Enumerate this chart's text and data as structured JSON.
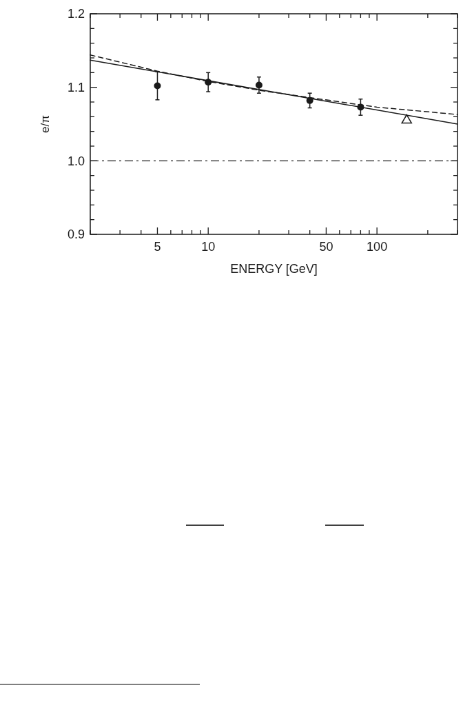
{
  "chart_data": {
    "type": "scatter",
    "xlabel": "ENERGY [GeV]",
    "ylabel": "e/π",
    "log": "x",
    "xlim": [
      2,
      300
    ],
    "ylim": [
      0.9,
      1.2
    ],
    "xticks": [
      {
        "value": 2,
        "label": null
      },
      {
        "value": 3,
        "label": null
      },
      {
        "value": 4,
        "label": null
      },
      5,
      {
        "value": 6,
        "label": null
      },
      {
        "value": 7,
        "label": null
      },
      {
        "value": 8,
        "label": null
      },
      {
        "value": 9,
        "label": null
      },
      10,
      {
        "value": 20,
        "label": null
      },
      {
        "value": 30,
        "label": null
      },
      {
        "value": 40,
        "label": null
      },
      50,
      {
        "value": 60,
        "label": null
      },
      {
        "value": 70,
        "label": null
      },
      {
        "value": 80,
        "label": null
      },
      {
        "value": 90,
        "label": null
      },
      100,
      {
        "value": 200,
        "label": null
      },
      {
        "value": 300,
        "label": null
      }
    ],
    "yticks": [
      {
        "value": 0.9,
        "label": "0.9"
      },
      {
        "value": 0.92,
        "label": null
      },
      {
        "value": 0.94,
        "label": null
      },
      {
        "value": 0.96,
        "label": null
      },
      {
        "value": 0.98,
        "label": null
      },
      {
        "value": 1.0,
        "label": "1.0"
      },
      {
        "value": 1.02,
        "label": null
      },
      {
        "value": 1.04,
        "label": null
      },
      {
        "value": 1.06,
        "label": null
      },
      {
        "value": 1.08,
        "label": null
      },
      {
        "value": 1.1,
        "label": "1.1"
      },
      {
        "value": 1.12,
        "label": null
      },
      {
        "value": 1.14,
        "label": null
      },
      {
        "value": 1.16,
        "label": null
      },
      {
        "value": 1.18,
        "label": null
      },
      {
        "value": 1.2,
        "label": "1.2"
      }
    ],
    "grid": false,
    "series": [
      {
        "type": "line",
        "color": "#1a1a1a",
        "line_style": "solid",
        "marker": "none",
        "x": [
          2,
          300
        ],
        "values": [
          1.137,
          1.05
        ]
      },
      {
        "type": "line",
        "color": "#1a1a1a",
        "line_style": "dashed",
        "marker": "none",
        "x": [
          2,
          5,
          10,
          20,
          40,
          100,
          300
        ],
        "values": [
          1.144,
          1.122,
          1.108,
          1.096,
          1.086,
          1.073,
          1.063
        ]
      },
      {
        "color": "#1a1a1a",
        "marker": "circle",
        "x": [
          5,
          10,
          20,
          40,
          80
        ],
        "values": [
          1.102,
          1.107,
          1.103,
          1.082,
          1.073
        ],
        "errors": [
          0.019,
          0.013,
          0.011,
          0.01,
          0.011
        ]
      },
      {
        "color": "#1a1a1a",
        "marker": "triangle",
        "x": [
          150
        ],
        "values": [
          1.057
        ]
      }
    ],
    "ref_lines": [
      {
        "axis": "y",
        "value": 1.0,
        "color": "#1a1a1a",
        "line_style": "dashdot"
      }
    ]
  }
}
